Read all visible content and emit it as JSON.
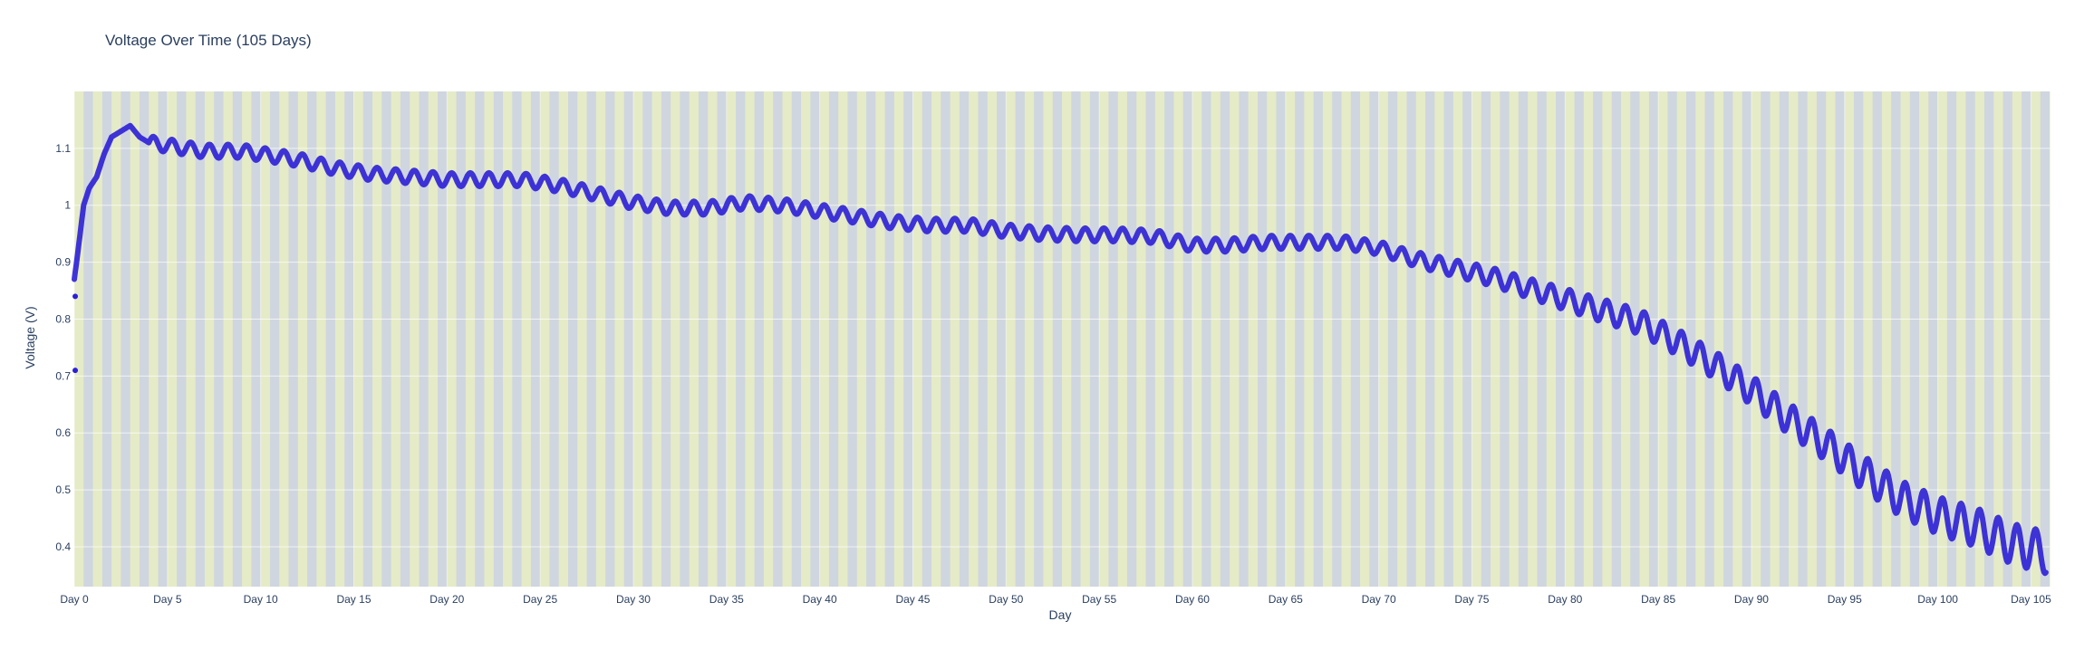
{
  "chart_data": {
    "type": "line",
    "title": "Voltage Over Time (105 Days)",
    "xlabel": "Day",
    "ylabel": "Voltage (V)",
    "xlim": [
      0,
      106
    ],
    "ylim": [
      0.33,
      1.2
    ],
    "x_ticks": [
      {
        "value": 0,
        "label": "Day 0"
      },
      {
        "value": 5,
        "label": "Day 5"
      },
      {
        "value": 10,
        "label": "Day 10"
      },
      {
        "value": 15,
        "label": "Day 15"
      },
      {
        "value": 20,
        "label": "Day 20"
      },
      {
        "value": 25,
        "label": "Day 25"
      },
      {
        "value": 30,
        "label": "Day 30"
      },
      {
        "value": 35,
        "label": "Day 35"
      },
      {
        "value": 40,
        "label": "Day 40"
      },
      {
        "value": 45,
        "label": "Day 45"
      },
      {
        "value": 50,
        "label": "Day 50"
      },
      {
        "value": 55,
        "label": "Day 55"
      },
      {
        "value": 60,
        "label": "Day 60"
      },
      {
        "value": 65,
        "label": "Day 65"
      },
      {
        "value": 70,
        "label": "Day 70"
      },
      {
        "value": 75,
        "label": "Day 75"
      },
      {
        "value": 80,
        "label": "Day 80"
      },
      {
        "value": 85,
        "label": "Day 85"
      },
      {
        "value": 90,
        "label": "Day 90"
      },
      {
        "value": 95,
        "label": "Day 95"
      },
      {
        "value": 100,
        "label": "Day 100"
      },
      {
        "value": 105,
        "label": "Day 105"
      }
    ],
    "y_ticks": [
      {
        "value": 0.4,
        "label": "0.4"
      },
      {
        "value": 0.5,
        "label": "0.5"
      },
      {
        "value": 0.6,
        "label": "0.6"
      },
      {
        "value": 0.7,
        "label": "0.7"
      },
      {
        "value": 0.8,
        "label": "0.8"
      },
      {
        "value": 0.9,
        "label": "0.9"
      },
      {
        "value": 1,
        "label": "1"
      },
      {
        "value": 1.1,
        "label": "1.1"
      }
    ],
    "grid": true,
    "legend": "none",
    "background_bands": {
      "colors": [
        "#e5ebc6",
        "#cfd6df"
      ],
      "period_days": 1
    },
    "series": [
      {
        "color": "#2b1fd6",
        "x": [
          0,
          0.2,
          0.5,
          0.8,
          1.2,
          1.6,
          2.0,
          2.5,
          3.0,
          3.5,
          4.0,
          5,
          6,
          7,
          8,
          9,
          10,
          12,
          14,
          16,
          18,
          20,
          22,
          24,
          26,
          28,
          30,
          32,
          34,
          36,
          38,
          40,
          42,
          44,
          46,
          48,
          50,
          52,
          54,
          56,
          58,
          60,
          62,
          64,
          66,
          68,
          70,
          72,
          74,
          76,
          78,
          80,
          82,
          84,
          86,
          88,
          90,
          92,
          94,
          96,
          98,
          100,
          102,
          104,
          105.8
        ],
        "y": [
          0.87,
          0.92,
          1.0,
          1.03,
          1.05,
          1.09,
          1.12,
          1.13,
          1.14,
          1.12,
          1.11,
          1.105,
          1.1,
          1.095,
          1.095,
          1.095,
          1.09,
          1.08,
          1.065,
          1.055,
          1.05,
          1.045,
          1.045,
          1.045,
          1.035,
          1.02,
          1.005,
          0.995,
          0.995,
          1.005,
          1.0,
          0.99,
          0.98,
          0.97,
          0.965,
          0.965,
          0.955,
          0.95,
          0.948,
          0.948,
          0.945,
          0.93,
          0.93,
          0.935,
          0.935,
          0.935,
          0.925,
          0.905,
          0.89,
          0.875,
          0.855,
          0.835,
          0.815,
          0.795,
          0.76,
          0.72,
          0.675,
          0.625,
          0.58,
          0.53,
          0.485,
          0.455,
          0.435,
          0.405,
          0.39
        ]
      }
    ],
    "outliers": [
      {
        "x": 0.05,
        "y": 0.71
      },
      {
        "x": 0.05,
        "y": 0.84
      }
    ]
  }
}
